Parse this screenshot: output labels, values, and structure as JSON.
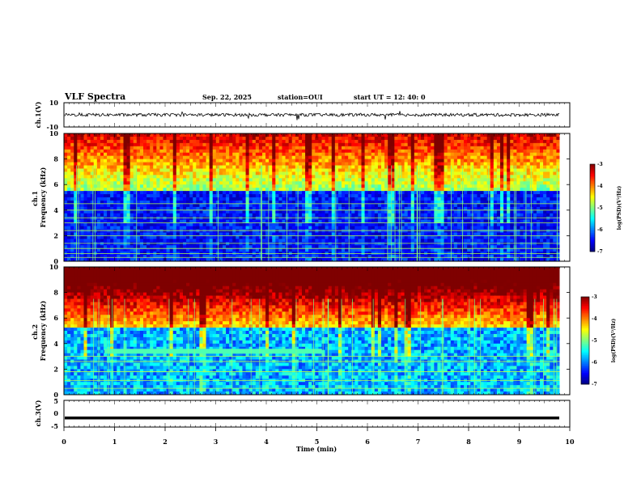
{
  "header": {
    "title": "VLF Spectra",
    "date": "Sep. 22, 2025",
    "station": "station=OUI",
    "start": "start UT =  12: 40: 0"
  },
  "chart_data": [
    {
      "type": "line",
      "name": "ch1-waveform",
      "ylabel": "ch.1(V)",
      "ylim": [
        -10,
        10
      ],
      "ytick_labels": [
        "10",
        "-10"
      ],
      "xlim": [
        0,
        10
      ],
      "trace_level": 0,
      "trace_end": 9.8
    },
    {
      "type": "heatmap",
      "name": "ch1-spectrogram",
      "ylabel": "ch.1\nFrequency (kHz)",
      "ylim": [
        0,
        10
      ],
      "ytick_labels": [
        "0",
        "2",
        "4",
        "6",
        "8",
        "10"
      ],
      "xlim": [
        0,
        10
      ],
      "data_end": 9.8,
      "noise_floor_khz": 5.6,
      "colorbar": {
        "label": "log(PSD)(V²/Hz)",
        "range": [
          -7,
          -3
        ],
        "tick_labels": [
          "-7",
          "-6",
          "-5",
          "-4",
          "-3"
        ]
      }
    },
    {
      "type": "heatmap",
      "name": "ch2-spectrogram",
      "ylabel": "ch.2\nFrequency (kHz)",
      "ylim": [
        0,
        10
      ],
      "ytick_labels": [
        "0",
        "2",
        "4",
        "6",
        "8",
        "10"
      ],
      "xlim": [
        0,
        10
      ],
      "data_end": 9.8,
      "noise_floor_khz": 5.2,
      "band_khz": 3.4,
      "band_end_min": 5.1,
      "colorbar": {
        "label": "log(PSD)(V²/Hz)",
        "range": [
          -7,
          -3
        ],
        "tick_labels": [
          "-7",
          "-6",
          "-5",
          "-4",
          "-3"
        ]
      }
    },
    {
      "type": "line",
      "name": "ch3-waveform",
      "ylabel": "ch.3(V)",
      "ylim": [
        -5,
        5
      ],
      "ytick_labels": [
        "5",
        "0",
        "-5"
      ],
      "xlim": [
        0,
        10
      ],
      "trace_level": -1.6,
      "trace_end": 9.8,
      "xlabel": "Time (min)",
      "xtick_labels": [
        "0",
        "1",
        "2",
        "3",
        "4",
        "5",
        "6",
        "7",
        "8",
        "9",
        "10"
      ]
    }
  ],
  "colors": {
    "jet": [
      "#00007f",
      "#0000ff",
      "#007fff",
      "#00ffff",
      "#7fff7f",
      "#ffff00",
      "#ff7f00",
      "#ff0000",
      "#7f0000"
    ],
    "axis": "#000000",
    "trace": "#000000"
  }
}
